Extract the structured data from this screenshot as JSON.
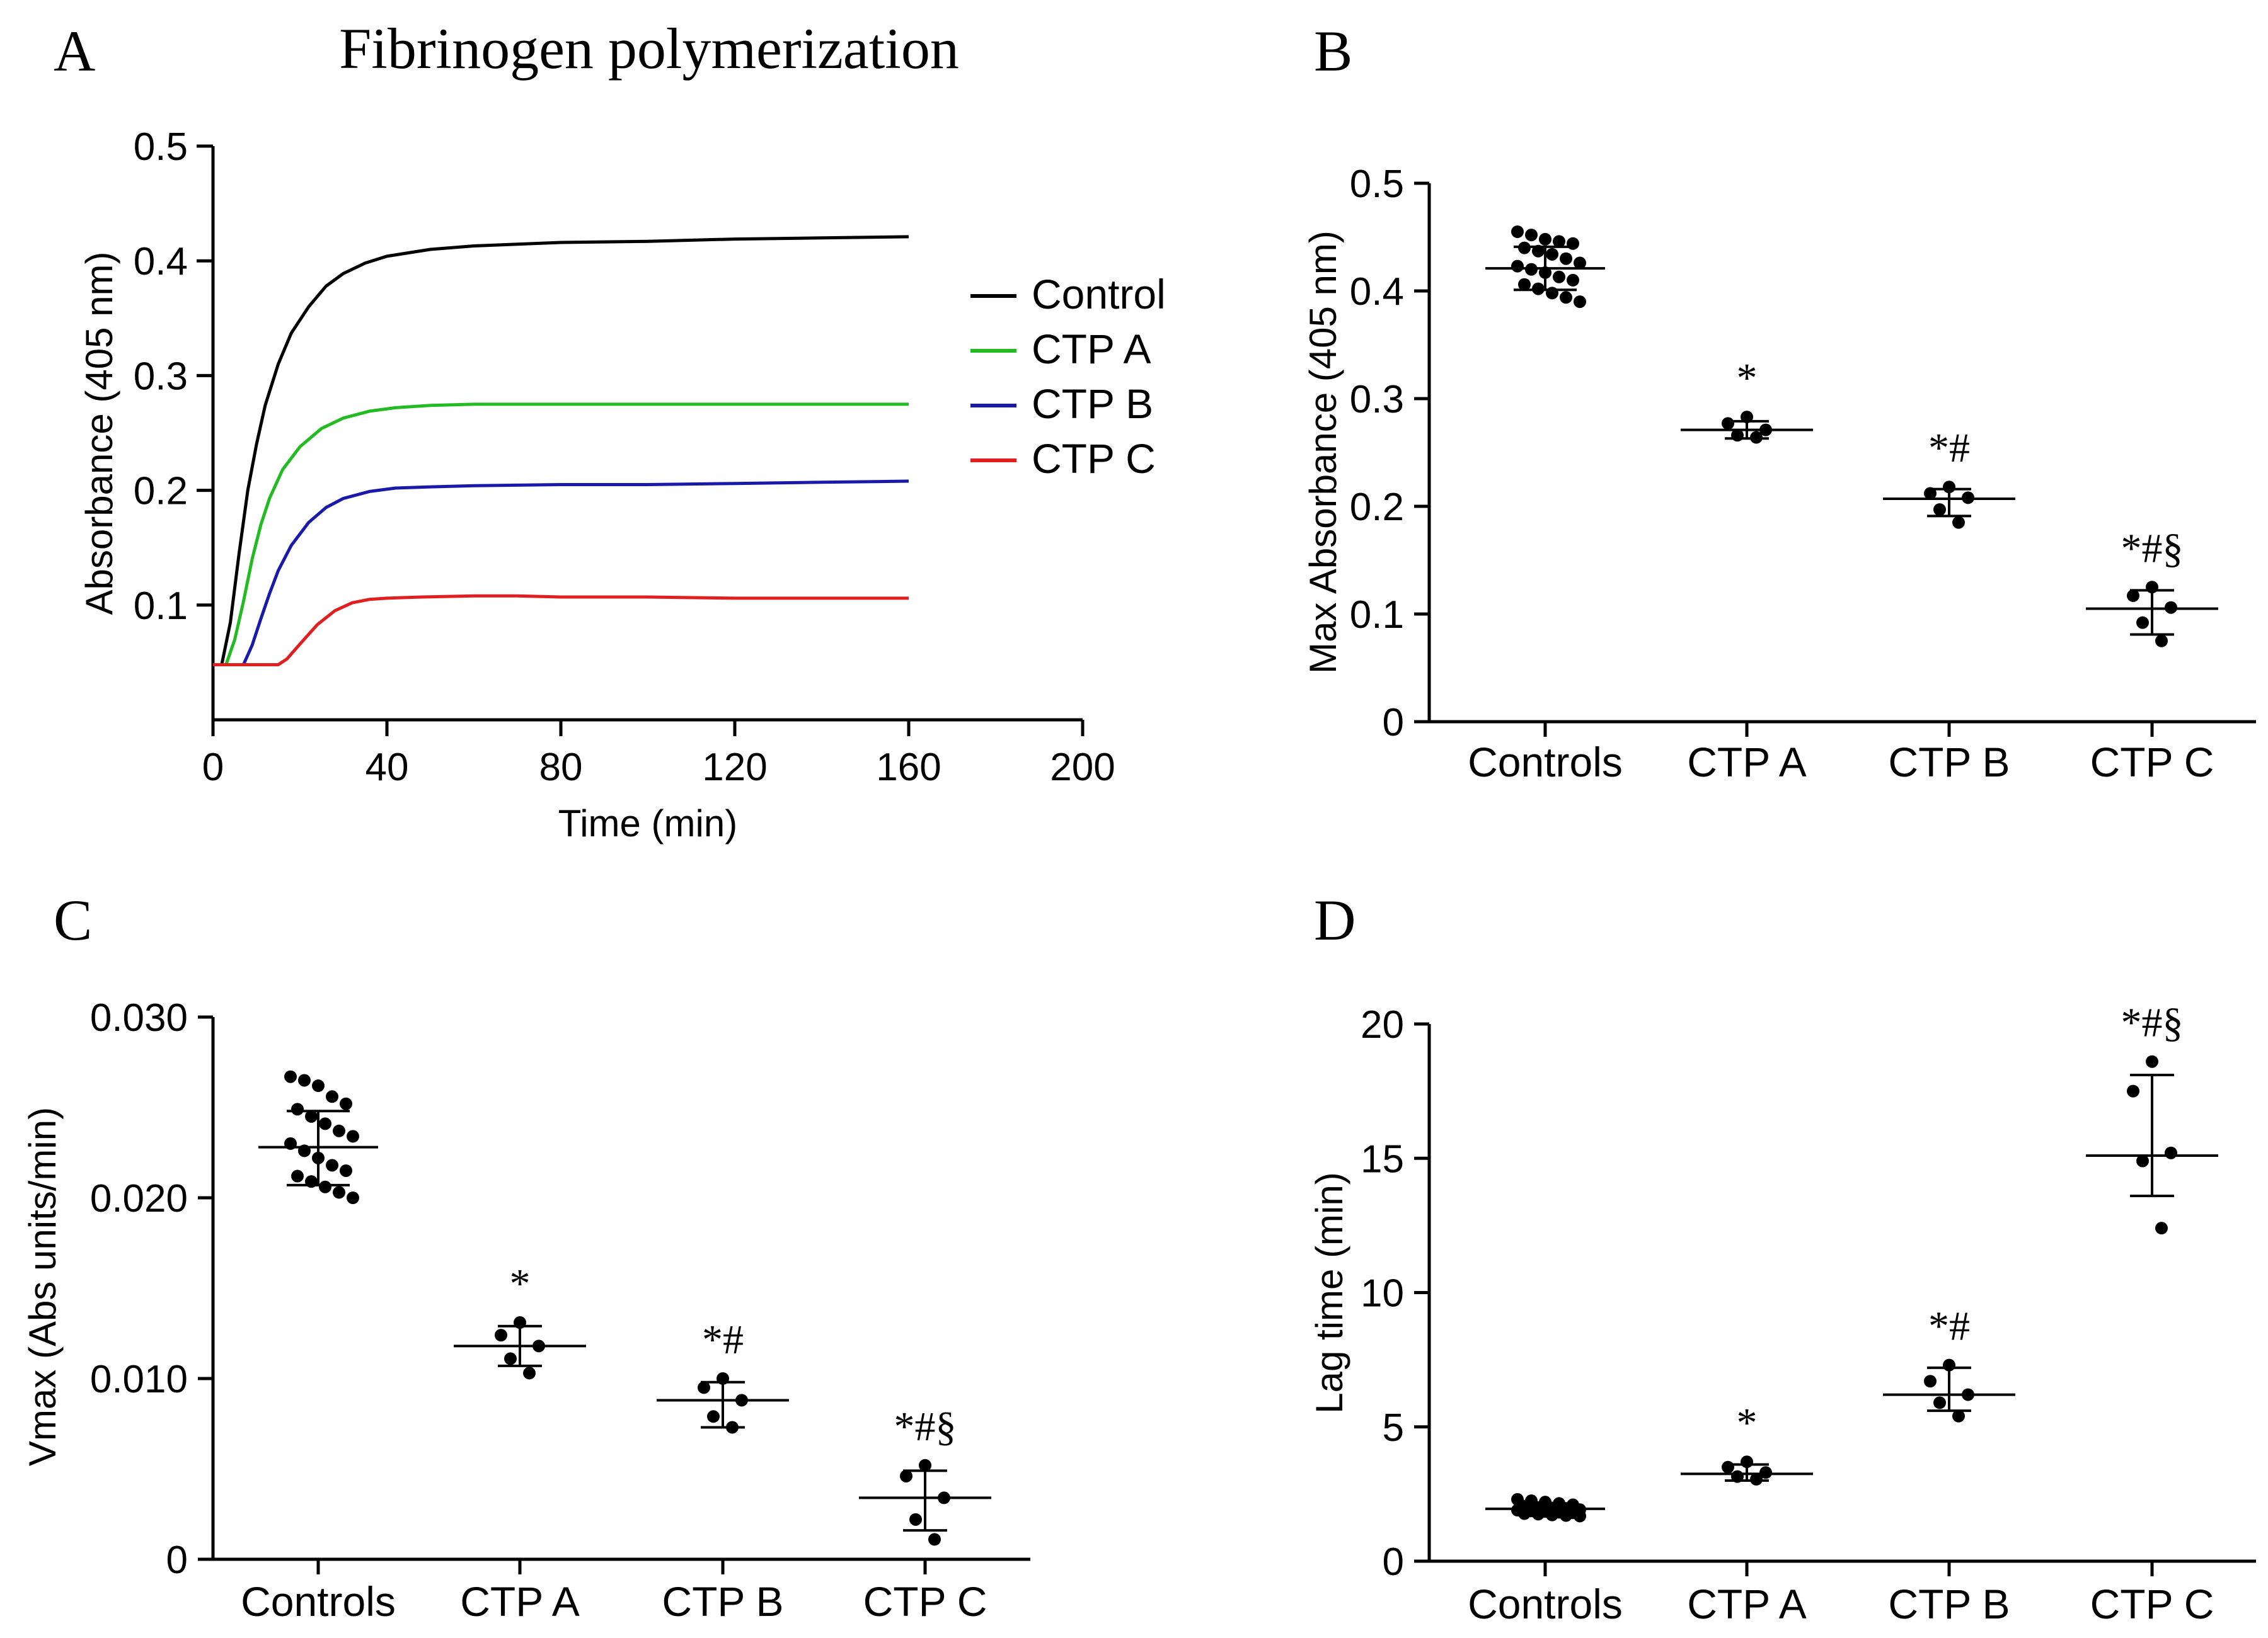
{
  "figure": {
    "panel_A_letter": "A",
    "panel_B_letter": "B",
    "panel_C_letter": "C",
    "panel_D_letter": "D"
  },
  "chart_data": [
    {
      "id": "A",
      "type": "line",
      "title": "Fibrinogen polymerization",
      "xlabel": "Time (min)",
      "ylabel": "Absorbance (405 nm)",
      "xlim": [
        0,
        200
      ],
      "ylim": [
        0,
        0.5
      ],
      "xticks": [
        "0",
        "40",
        "80",
        "120",
        "160",
        "200"
      ],
      "xtick_values": [
        0,
        40,
        80,
        120,
        160,
        200
      ],
      "yticks": [
        "0.1",
        "0.2",
        "0.3",
        "0.4",
        "0.5"
      ],
      "ytick_values": [
        0.1,
        0.2,
        0.3,
        0.4,
        0.5
      ],
      "legend_position": "right",
      "series": [
        {
          "name": "Control",
          "color": "#000000",
          "x": [
            0,
            2,
            4,
            6,
            8,
            10,
            12,
            15,
            18,
            22,
            26,
            30,
            35,
            40,
            50,
            60,
            80,
            100,
            120,
            140,
            160
          ],
          "values": [
            0.048,
            0.048,
            0.085,
            0.145,
            0.2,
            0.24,
            0.274,
            0.31,
            0.337,
            0.36,
            0.378,
            0.389,
            0.398,
            0.404,
            0.41,
            0.413,
            0.416,
            0.417,
            0.419,
            0.42,
            0.421
          ]
        },
        {
          "name": "CTP A",
          "color": "#22bb22",
          "x": [
            0,
            3,
            5,
            7,
            9,
            11,
            13,
            16,
            20,
            25,
            30,
            36,
            42,
            50,
            60,
            80,
            100,
            120,
            140,
            160
          ],
          "values": [
            0.048,
            0.048,
            0.07,
            0.103,
            0.14,
            0.17,
            0.193,
            0.218,
            0.238,
            0.254,
            0.263,
            0.269,
            0.272,
            0.274,
            0.275,
            0.275,
            0.275,
            0.275,
            0.275,
            0.275
          ]
        },
        {
          "name": "CTP B",
          "color": "#1a1aaa",
          "x": [
            0,
            7,
            9,
            11,
            13,
            15,
            18,
            22,
            26,
            30,
            36,
            42,
            50,
            60,
            80,
            100,
            120,
            140,
            160
          ],
          "values": [
            0.048,
            0.048,
            0.065,
            0.088,
            0.11,
            0.13,
            0.152,
            0.172,
            0.185,
            0.193,
            0.199,
            0.202,
            0.203,
            0.204,
            0.205,
            0.205,
            0.206,
            0.207,
            0.208
          ]
        },
        {
          "name": "CTP C",
          "color": "#e02020",
          "x": [
            0,
            15,
            17,
            20,
            24,
            28,
            32,
            36,
            40,
            48,
            60,
            70,
            80,
            100,
            120,
            140,
            160
          ],
          "values": [
            0.048,
            0.048,
            0.053,
            0.066,
            0.083,
            0.095,
            0.102,
            0.105,
            0.106,
            0.107,
            0.108,
            0.108,
            0.107,
            0.107,
            0.106,
            0.106,
            0.106
          ]
        }
      ]
    },
    {
      "id": "B",
      "type": "scatter",
      "title": "",
      "ylabel": "Max Absorbance (405 nm)",
      "ylim": [
        0,
        0.5
      ],
      "yticks": [
        "0",
        "0.1",
        "0.2",
        "0.3",
        "0.4",
        "0.5"
      ],
      "ytick_values": [
        0,
        0.1,
        0.2,
        0.3,
        0.4,
        0.5
      ],
      "categories": [
        "Controls",
        "CTP A",
        "CTP B",
        "CTP C"
      ],
      "groups": [
        {
          "name": "Controls",
          "mean": 0.421,
          "sd_low": 0.401,
          "sd_high": 0.441,
          "significance": "",
          "points": [
            0.455,
            0.452,
            0.448,
            0.446,
            0.444,
            0.44,
            0.437,
            0.434,
            0.43,
            0.426,
            0.423,
            0.42,
            0.417,
            0.413,
            0.41,
            0.406,
            0.402,
            0.398,
            0.394,
            0.39
          ]
        },
        {
          "name": "CTP A",
          "mean": 0.271,
          "sd_low": 0.263,
          "sd_high": 0.279,
          "significance": "*",
          "points": [
            0.283,
            0.277,
            0.271,
            0.266,
            0.264
          ]
        },
        {
          "name": "CTP B",
          "mean": 0.207,
          "sd_low": 0.191,
          "sd_high": 0.216,
          "significance": "*#",
          "points": [
            0.218,
            0.212,
            0.208,
            0.197,
            0.185
          ]
        },
        {
          "name": "CTP C",
          "mean": 0.105,
          "sd_low": 0.081,
          "sd_high": 0.122,
          "significance": "*#§",
          "points": [
            0.125,
            0.117,
            0.106,
            0.092,
            0.075
          ]
        }
      ]
    },
    {
      "id": "C",
      "type": "scatter",
      "title": "",
      "ylabel": "Vmax (Abs units/min)",
      "ylim": [
        0,
        0.03
      ],
      "yticks": [
        "0",
        "0.010",
        "0.020",
        "0.030"
      ],
      "ytick_values": [
        0,
        0.01,
        0.02,
        0.03
      ],
      "categories": [
        "Controls",
        "CTP A",
        "CTP B",
        "CTP C"
      ],
      "groups": [
        {
          "name": "Controls",
          "mean": 0.0228,
          "sd_low": 0.0207,
          "sd_high": 0.0248,
          "significance": "",
          "points": [
            0.0267,
            0.0265,
            0.0262,
            0.0256,
            0.0252,
            0.0249,
            0.0245,
            0.0241,
            0.0237,
            0.0234,
            0.023,
            0.0226,
            0.0222,
            0.0218,
            0.0215,
            0.0212,
            0.0209,
            0.0206,
            0.0203,
            0.02
          ]
        },
        {
          "name": "CTP A",
          "mean": 0.0118,
          "sd_low": 0.0107,
          "sd_high": 0.0129,
          "significance": "*",
          "points": [
            0.0131,
            0.0124,
            0.0118,
            0.0111,
            0.0103
          ]
        },
        {
          "name": "CTP B",
          "mean": 0.0088,
          "sd_low": 0.0073,
          "sd_high": 0.0098,
          "significance": "*#",
          "points": [
            0.01,
            0.0095,
            0.0088,
            0.0079,
            0.0073
          ]
        },
        {
          "name": "CTP C",
          "mean": 0.0034,
          "sd_low": 0.0016,
          "sd_high": 0.0049,
          "significance": "*#§",
          "points": [
            0.0052,
            0.0046,
            0.0034,
            0.0022,
            0.0011
          ]
        }
      ]
    },
    {
      "id": "D",
      "type": "scatter",
      "title": "",
      "ylabel": "Lag time (min)",
      "ylim": [
        0,
        20
      ],
      "yticks": [
        "0",
        "5",
        "10",
        "15",
        "20"
      ],
      "ytick_values": [
        0,
        5,
        10,
        15,
        20
      ],
      "categories": [
        "Controls",
        "CTP A",
        "CTP B",
        "CTP C"
      ],
      "groups": [
        {
          "name": "Controls",
          "mean": 1.95,
          "sd_low": 1.75,
          "sd_high": 2.15,
          "significance": "",
          "points": [
            2.3,
            2.25,
            2.2,
            2.15,
            2.1,
            2.05,
            2.0,
            1.98,
            1.95,
            1.92,
            1.9,
            1.87,
            1.85,
            1.82,
            1.8,
            1.77,
            1.75,
            1.72,
            1.7,
            1.68
          ]
        },
        {
          "name": "CTP A",
          "mean": 3.25,
          "sd_low": 3.0,
          "sd_high": 3.6,
          "significance": "*",
          "points": [
            3.7,
            3.5,
            3.3,
            3.15,
            3.05
          ]
        },
        {
          "name": "CTP B",
          "mean": 6.2,
          "sd_low": 5.6,
          "sd_high": 7.2,
          "significance": "*#",
          "points": [
            7.3,
            6.7,
            6.2,
            5.9,
            5.4
          ]
        },
        {
          "name": "CTP C",
          "mean": 15.1,
          "sd_low": 13.6,
          "sd_high": 18.1,
          "significance": "*#§",
          "points": [
            18.6,
            17.5,
            15.2,
            14.9,
            12.4
          ]
        }
      ]
    }
  ]
}
